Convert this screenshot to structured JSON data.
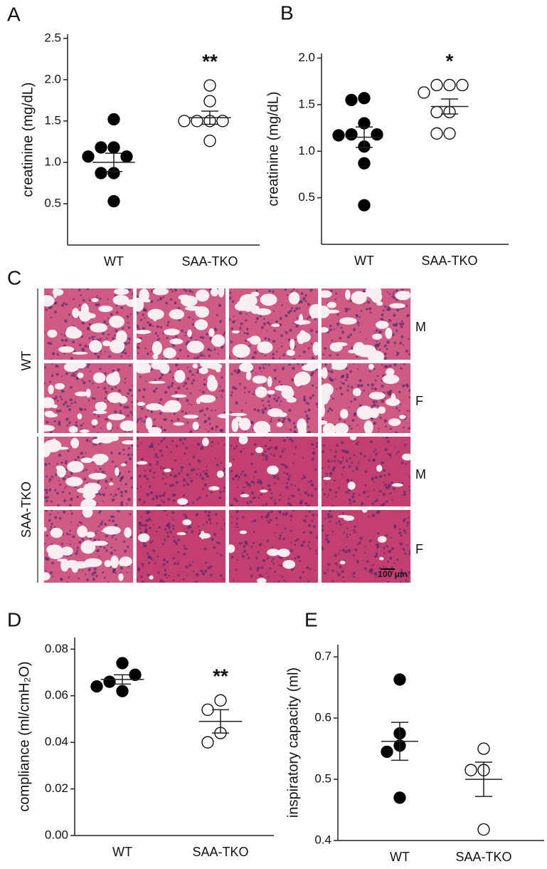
{
  "chart_data": [
    {
      "type": "dot",
      "panel": "A",
      "y_label": "creatinine (mg/dL)",
      "categories": [
        "WT",
        "SAA-TKO"
      ],
      "groups": [
        {
          "values": [
            1.52,
            1.18,
            1.18,
            1.07,
            1.07,
            0.87,
            0.87,
            0.53
          ],
          "mean": 1.0,
          "sem": 0.11,
          "fill": "#000000"
        },
        {
          "values": [
            1.93,
            1.74,
            1.5,
            1.5,
            1.5,
            1.5,
            1.26
          ],
          "mean": 1.54,
          "sem": 0.08,
          "fill": "#ffffff"
        }
      ],
      "annotations": [
        null,
        "**"
      ],
      "ylim": [
        0,
        2.55
      ],
      "yticks": [
        0.5,
        {
          "value": 1,
          "label": "1.0"
        },
        1.5,
        {
          "value": 2,
          "label": "2.0"
        },
        2.5
      ]
    },
    {
      "type": "dot",
      "panel": "B",
      "y_label": "creatinine (mg/dL)",
      "categories": [
        "WT",
        "SAA-TKO"
      ],
      "groups": [
        {
          "values": [
            1.57,
            1.55,
            1.3,
            1.18,
            1.18,
            1.17,
            1.05,
            0.87,
            0.42
          ],
          "mean": 1.15,
          "sem": 0.11,
          "fill": "#000000"
        },
        {
          "values": [
            1.71,
            1.71,
            1.71,
            1.63,
            1.42,
            1.42,
            1.19,
            1.19
          ],
          "mean": 1.48,
          "sem": 0.08,
          "fill": "#ffffff"
        }
      ],
      "annotations": [
        null,
        "*"
      ],
      "ylim": [
        0,
        2.05
      ],
      "yticks": [
        0.5,
        {
          "value": 1,
          "label": "1.0"
        },
        1.5,
        {
          "value": 2,
          "label": "2.0"
        }
      ]
    },
    {
      "type": "dot",
      "panel": "D",
      "y_label": "compliance (ml/cmH₂O)",
      "categories": [
        "WT",
        "SAA-TKO"
      ],
      "groups": [
        {
          "values": [
            0.074,
            0.062,
            0.066,
            0.069,
            0.064
          ],
          "mean": 0.067,
          "sem": 0.002,
          "fill": "#000000"
        },
        {
          "values": [
            0.058,
            0.054,
            0.044,
            0.04
          ],
          "mean": 0.049,
          "sem": 0.005,
          "fill": "#ffffff"
        }
      ],
      "annotations": [
        null,
        "**"
      ],
      "ylim": [
        0,
        0.085
      ],
      "yticks": [
        {
          "value": 0,
          "label": "0.00"
        },
        {
          "value": 0.02,
          "label": "0.02"
        },
        {
          "value": 0.04,
          "label": "0.04"
        },
        {
          "value": 0.06,
          "label": "0.06"
        },
        {
          "value": 0.08,
          "label": "0.08"
        }
      ]
    },
    {
      "type": "dot",
      "panel": "E",
      "y_label": "inspiratory capacity (ml)",
      "categories": [
        "WT",
        "SAA-TKO"
      ],
      "groups": [
        {
          "values": [
            0.663,
            0.575,
            0.555,
            0.545,
            0.47
          ],
          "mean": 0.562,
          "sem": 0.031,
          "fill": "#000000"
        },
        {
          "values": [
            0.55,
            0.515,
            0.515,
            0.418
          ],
          "mean": 0.5,
          "sem": 0.028,
          "fill": "#ffffff"
        }
      ],
      "annotations": [
        null,
        null
      ],
      "ylim": [
        0.4,
        0.72
      ],
      "yticks": [
        0.4,
        0.5,
        0.6,
        0.7
      ]
    }
  ],
  "histology": {
    "panel": "C",
    "groups": [
      {
        "label": "WT",
        "rows": [
          "M",
          "F"
        ]
      },
      {
        "label": "SAA-TKO",
        "rows": [
          "M",
          "F"
        ]
      }
    ],
    "scale_bar": "100 μm"
  }
}
